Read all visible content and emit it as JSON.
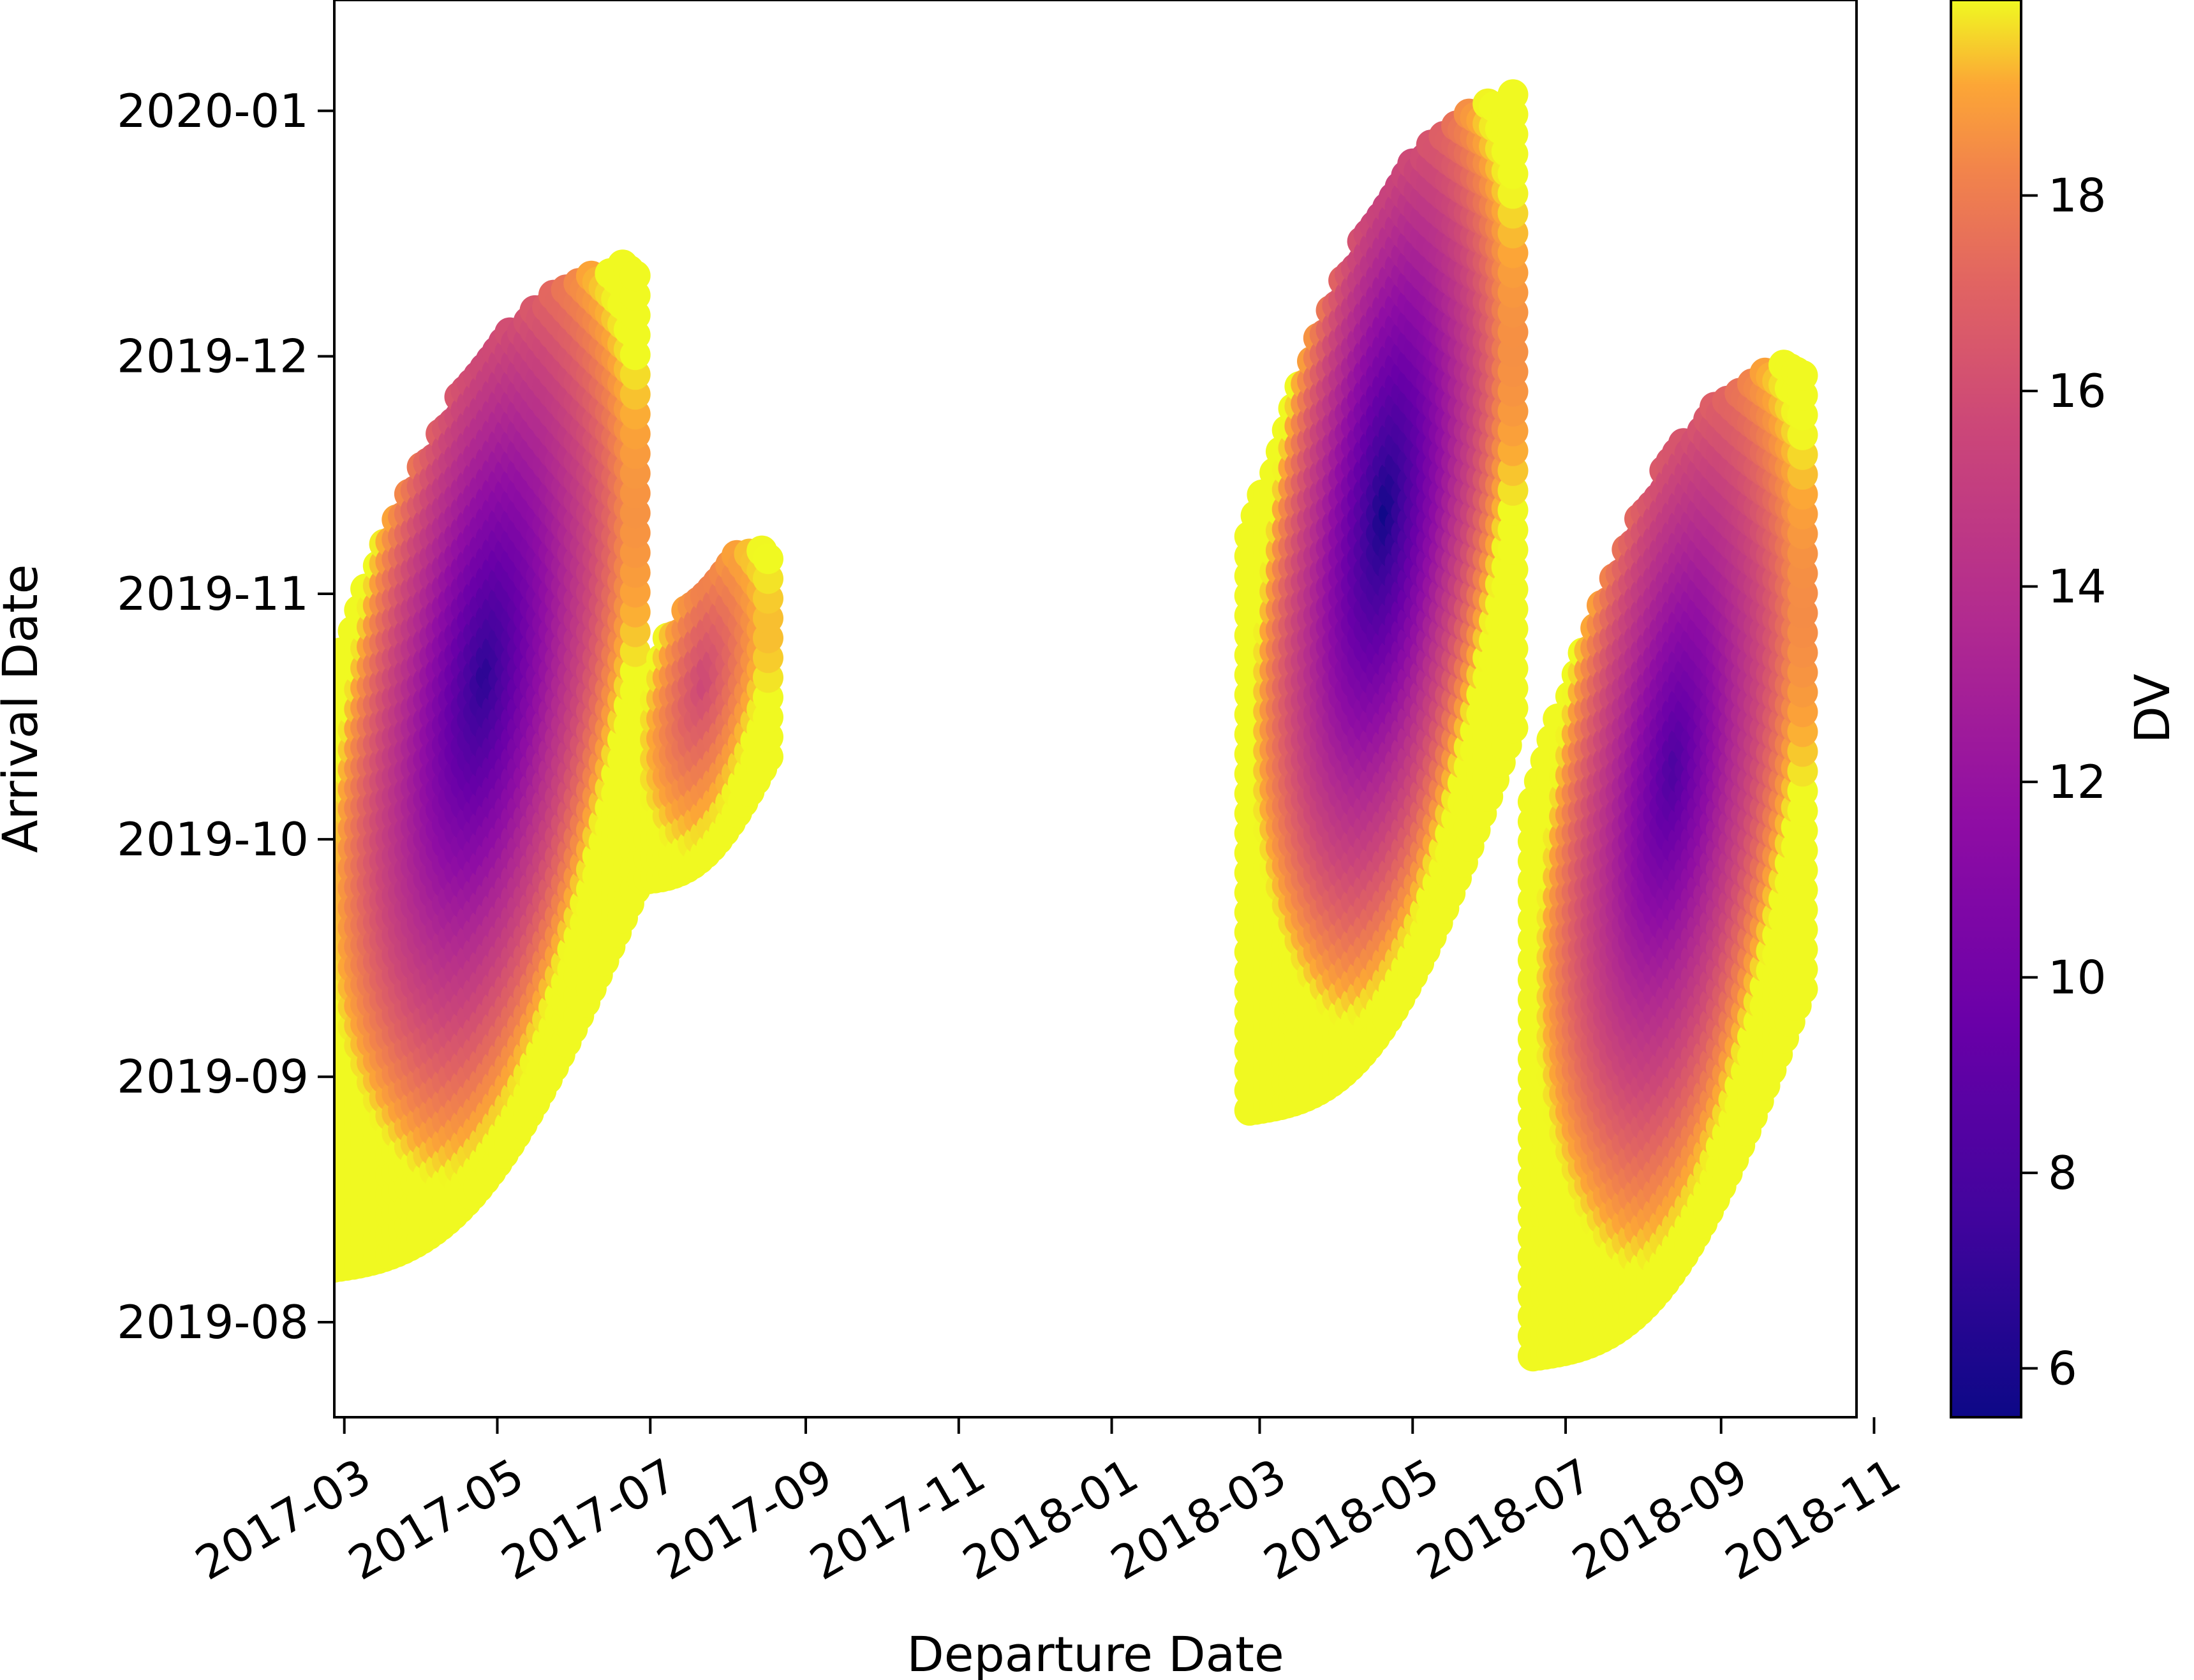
{
  "chart_data": {
    "type": "scatter",
    "title": "",
    "xlabel": "Departure Date",
    "ylabel": "Arrival Date",
    "colorbar_label": "DV",
    "colormap": "plasma",
    "color_range": [
      5.5,
      20
    ],
    "x_ticks": [
      "2017-03",
      "2017-05",
      "2017-07",
      "2017-09",
      "2017-11",
      "2018-01",
      "2018-03",
      "2018-05",
      "2018-07",
      "2018-09",
      "2018-11"
    ],
    "y_ticks": [
      "2019-08",
      "2019-09",
      "2019-10",
      "2019-11",
      "2019-12",
      "2020-01"
    ],
    "colorbar_ticks": [
      "6",
      "8",
      "10",
      "12",
      "14",
      "16",
      "18"
    ],
    "xlim": [
      "2017-02-25",
      "2018-10-25"
    ],
    "ylim": [
      "2019-07-20",
      "2020-01-15"
    ],
    "grid": false,
    "regions": [
      {
        "name": "",
        "x_range": [
          "2017-02-20",
          "2017-06-25"
        ],
        "arrival_min": "2019-08-05",
        "arrival_max": "2019-12-20",
        "min_dv": 6.5
      },
      {
        "name": "",
        "x_range": [
          "2017-06-28",
          "2017-08-18"
        ],
        "arrival_min": "2019-09-25",
        "arrival_max": "2019-11-10",
        "min_dv": 15.5
      },
      {
        "name": "",
        "x_range": [
          "2018-02-25",
          "2018-06-10"
        ],
        "arrival_min": "2019-08-25",
        "arrival_max": "2020-01-10",
        "min_dv": 5.6
      },
      {
        "name": "",
        "x_range": [
          "2018-06-18",
          "2018-10-05"
        ],
        "arrival_min": "2019-07-25",
        "arrival_max": "2019-12-08",
        "min_dv": 8.0
      }
    ]
  }
}
